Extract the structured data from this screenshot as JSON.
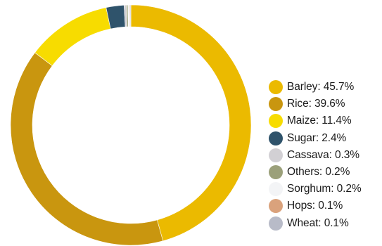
{
  "chart_data": {
    "type": "pie",
    "variant": "donut",
    "title": "",
    "legend_position": "right",
    "slices": [
      {
        "name": "Barley",
        "label": "Barley: 45.7%",
        "value": 45.7,
        "color": "#ebba00"
      },
      {
        "name": "Rice",
        "label": "Rice: 39.6%",
        "value": 39.6,
        "color": "#c9960f"
      },
      {
        "name": "Maize",
        "label": "Maize: 11.4%",
        "value": 11.4,
        "color": "#f7dc00"
      },
      {
        "name": "Sugar",
        "label": "Sugar: 2.4%",
        "value": 2.4,
        "color": "#2f536b"
      },
      {
        "name": "Cassava",
        "label": "Cassava: 0.3%",
        "value": 0.3,
        "color": "#d2d0d4"
      },
      {
        "name": "Others",
        "label": "Others: 0.2%",
        "value": 0.2,
        "color": "#9ba07a"
      },
      {
        "name": "Sorghum",
        "label": "Sorghum: 0.2%",
        "value": 0.2,
        "color": "#f3f4f6"
      },
      {
        "name": "Hops",
        "label": "Hops: 0.1%",
        "value": 0.1,
        "color": "#daa27c"
      },
      {
        "name": "Wheat",
        "label": "Wheat: 0.1%",
        "value": 0.1,
        "color": "#b8bbc8"
      }
    ]
  }
}
